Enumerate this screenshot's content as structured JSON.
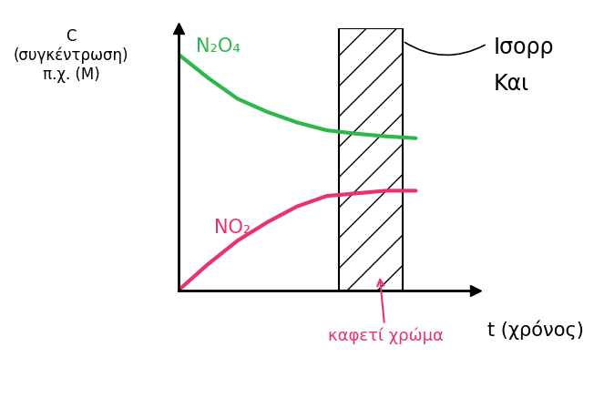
{
  "chart_data": {
    "type": "line",
    "y_label": "C\n(συγκέντρωση)\nπ.χ. (M)",
    "x_label": "t (χρόνος)",
    "x": [
      0,
      1,
      2,
      3,
      4,
      5,
      6,
      7,
      8
    ],
    "series": [
      {
        "name": "N₂O₄",
        "color": "#2db84d",
        "values": [
          9.0,
          8.1,
          7.3,
          6.8,
          6.4,
          6.1,
          5.97,
          5.87,
          5.8
        ]
      },
      {
        "name": "NO₂",
        "color": "#e8336b",
        "values": [
          0,
          1.0,
          1.9,
          2.6,
          3.2,
          3.6,
          3.7,
          3.8,
          3.8
        ]
      }
    ],
    "xlim": [
      0,
      10
    ],
    "ylim": [
      0,
      10
    ],
    "xticks": [],
    "yticks": [],
    "tick_labels": false,
    "grid": false,
    "shaded_region": {
      "range": [
        5.4,
        7.56
      ],
      "annotation": {
        "text": "καφετί χρώμα",
        "color": "#e8336b"
      }
    },
    "side_note": [
      "Ισορρ",
      "Και"
    ]
  }
}
